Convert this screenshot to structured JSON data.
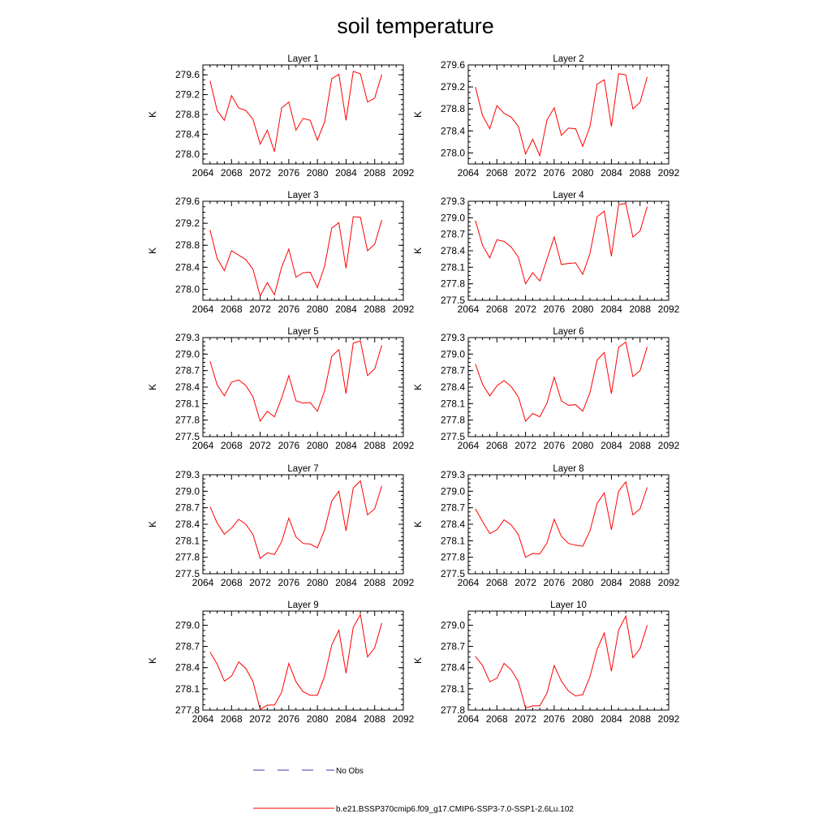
{
  "title": "soil temperature",
  "legend": {
    "items": [
      {
        "label": "No Obs",
        "color": "#3a3aa8",
        "dash": true
      },
      {
        "label": "b.e21.BSSP370cmip6.f09_g17.CMIP6-SSP3-7.0-SSP1-2.6Lu.102",
        "color": "#ff0000",
        "dash": false
      }
    ]
  },
  "colors": {
    "line": "#ff0000",
    "axis": "#000000",
    "obs": "#3a3aa8"
  },
  "chart_data": [
    {
      "type": "line",
      "title": "Layer 1",
      "ylabel": "K",
      "xlim": [
        2064,
        2092
      ],
      "xticks": [
        2064,
        2068,
        2072,
        2076,
        2080,
        2084,
        2088,
        2092
      ],
      "ylim": [
        277.8,
        279.8
      ],
      "yticks": [
        {
          "v": 278.0,
          "label": "278.0"
        },
        {
          "v": 278.4,
          "label": "278.4"
        },
        {
          "v": 278.8,
          "label": "278.8"
        },
        {
          "v": 279.2,
          "label": "279.2"
        },
        {
          "v": 279.6,
          "label": "279.6"
        }
      ],
      "series": [
        {
          "x": [
            2065,
            2066,
            2067,
            2068,
            2069,
            2070,
            2071,
            2072,
            2073,
            2074,
            2075,
            2076,
            2077,
            2078,
            2079,
            2080,
            2081,
            2082,
            2083,
            2084,
            2085,
            2086,
            2087,
            2088,
            2089
          ],
          "values": [
            279.48,
            278.88,
            278.68,
            279.18,
            278.93,
            278.88,
            278.7,
            278.2,
            278.48,
            278.05,
            278.93,
            279.05,
            278.48,
            278.72,
            278.68,
            278.28,
            278.65,
            279.52,
            279.61,
            278.68,
            279.67,
            279.62,
            279.05,
            279.13,
            279.61
          ]
        }
      ]
    },
    {
      "type": "line",
      "title": "Layer 2",
      "ylabel": "K",
      "xlim": [
        2064,
        2092
      ],
      "xticks": [
        2064,
        2068,
        2072,
        2076,
        2080,
        2084,
        2088,
        2092
      ],
      "ylim": [
        277.8,
        279.6
      ],
      "yticks": [
        {
          "v": 278.0,
          "label": "278.0"
        },
        {
          "v": 278.4,
          "label": "278.4"
        },
        {
          "v": 278.8,
          "label": "278.8"
        },
        {
          "v": 279.2,
          "label": "279.2"
        },
        {
          "v": 279.6,
          "label": "279.6"
        }
      ],
      "series": [
        {
          "x": [
            2065,
            2066,
            2067,
            2068,
            2069,
            2070,
            2071,
            2072,
            2073,
            2074,
            2075,
            2076,
            2077,
            2078,
            2079,
            2080,
            2081,
            2082,
            2083,
            2084,
            2085,
            2086,
            2087,
            2088,
            2089
          ],
          "values": [
            279.2,
            278.68,
            278.44,
            278.86,
            278.72,
            278.65,
            278.48,
            277.98,
            278.25,
            277.95,
            278.6,
            278.82,
            278.32,
            278.45,
            278.44,
            278.12,
            278.48,
            279.25,
            279.33,
            278.48,
            279.44,
            279.42,
            278.8,
            278.92,
            279.38
          ]
        }
      ]
    },
    {
      "type": "line",
      "title": "Layer 3",
      "ylabel": "K",
      "xlim": [
        2064,
        2092
      ],
      "xticks": [
        2064,
        2068,
        2072,
        2076,
        2080,
        2084,
        2088,
        2092
      ],
      "ylim": [
        277.8,
        279.6
      ],
      "yticks": [
        {
          "v": 278.0,
          "label": "278.0"
        },
        {
          "v": 278.4,
          "label": "278.4"
        },
        {
          "v": 278.8,
          "label": "278.8"
        },
        {
          "v": 279.2,
          "label": "279.2"
        },
        {
          "v": 279.6,
          "label": "279.6"
        }
      ],
      "series": [
        {
          "x": [
            2065,
            2066,
            2067,
            2068,
            2069,
            2070,
            2071,
            2072,
            2073,
            2074,
            2075,
            2076,
            2077,
            2078,
            2079,
            2080,
            2081,
            2082,
            2083,
            2084,
            2085,
            2086,
            2087,
            2088,
            2089
          ],
          "values": [
            279.08,
            278.56,
            278.34,
            278.7,
            278.62,
            278.54,
            278.36,
            277.88,
            278.12,
            277.9,
            278.4,
            278.73,
            278.22,
            278.3,
            278.31,
            278.03,
            278.42,
            279.11,
            279.21,
            278.38,
            279.32,
            279.31,
            278.7,
            278.82,
            279.26
          ]
        }
      ]
    },
    {
      "type": "line",
      "title": "Layer 4",
      "ylabel": "K",
      "xlim": [
        2064,
        2092
      ],
      "xticks": [
        2064,
        2068,
        2072,
        2076,
        2080,
        2084,
        2088,
        2092
      ],
      "ylim": [
        277.5,
        279.3
      ],
      "yticks": [
        {
          "v": 277.5,
          "label": "277.5"
        },
        {
          "v": 277.8,
          "label": "277.8"
        },
        {
          "v": 278.1,
          "label": "278.1"
        },
        {
          "v": 278.4,
          "label": "278.4"
        },
        {
          "v": 278.7,
          "label": "278.7"
        },
        {
          "v": 279.0,
          "label": "279.0"
        },
        {
          "v": 279.3,
          "label": "279.3"
        }
      ],
      "series": [
        {
          "x": [
            2065,
            2066,
            2067,
            2068,
            2069,
            2070,
            2071,
            2072,
            2073,
            2074,
            2075,
            2076,
            2077,
            2078,
            2079,
            2080,
            2081,
            2082,
            2083,
            2084,
            2085,
            2086,
            2087,
            2088,
            2089
          ],
          "values": [
            278.95,
            278.5,
            278.27,
            278.6,
            278.57,
            278.47,
            278.28,
            277.8,
            278.0,
            277.85,
            278.25,
            278.65,
            278.15,
            278.17,
            278.18,
            277.97,
            278.35,
            279.02,
            279.12,
            278.3,
            279.24,
            279.26,
            278.65,
            278.76,
            279.2
          ]
        }
      ]
    },
    {
      "type": "line",
      "title": "Layer 5",
      "ylabel": "K",
      "xlim": [
        2064,
        2092
      ],
      "xticks": [
        2064,
        2068,
        2072,
        2076,
        2080,
        2084,
        2088,
        2092
      ],
      "ylim": [
        277.5,
        279.3
      ],
      "yticks": [
        {
          "v": 277.5,
          "label": "277.5"
        },
        {
          "v": 277.8,
          "label": "277.8"
        },
        {
          "v": 278.1,
          "label": "278.1"
        },
        {
          "v": 278.4,
          "label": "278.4"
        },
        {
          "v": 278.7,
          "label": "278.7"
        },
        {
          "v": 279.0,
          "label": "279.0"
        },
        {
          "v": 279.3,
          "label": "279.3"
        }
      ],
      "series": [
        {
          "x": [
            2065,
            2066,
            2067,
            2068,
            2069,
            2070,
            2071,
            2072,
            2073,
            2074,
            2075,
            2076,
            2077,
            2078,
            2079,
            2080,
            2081,
            2082,
            2083,
            2084,
            2085,
            2086,
            2087,
            2088,
            2089
          ],
          "values": [
            278.87,
            278.44,
            278.24,
            278.49,
            278.53,
            278.43,
            278.22,
            277.78,
            277.96,
            277.86,
            278.2,
            278.61,
            278.15,
            278.11,
            278.12,
            277.96,
            278.33,
            278.96,
            279.08,
            278.28,
            279.2,
            279.24,
            278.61,
            278.73,
            279.16
          ]
        }
      ]
    },
    {
      "type": "line",
      "title": "Layer 6",
      "ylabel": "K",
      "xlim": [
        2064,
        2092
      ],
      "xticks": [
        2064,
        2068,
        2072,
        2076,
        2080,
        2084,
        2088,
        2092
      ],
      "ylim": [
        277.5,
        279.3
      ],
      "yticks": [
        {
          "v": 277.5,
          "label": "277.5"
        },
        {
          "v": 277.8,
          "label": "277.8"
        },
        {
          "v": 278.1,
          "label": "278.1"
        },
        {
          "v": 278.4,
          "label": "278.4"
        },
        {
          "v": 278.7,
          "label": "278.7"
        },
        {
          "v": 279.0,
          "label": "279.0"
        },
        {
          "v": 279.3,
          "label": "279.3"
        }
      ],
      "series": [
        {
          "x": [
            2065,
            2066,
            2067,
            2068,
            2069,
            2070,
            2071,
            2072,
            2073,
            2074,
            2075,
            2076,
            2077,
            2078,
            2079,
            2080,
            2081,
            2082,
            2083,
            2084,
            2085,
            2086,
            2087,
            2088,
            2089
          ],
          "values": [
            278.82,
            278.45,
            278.24,
            278.42,
            278.52,
            278.41,
            278.22,
            277.78,
            277.92,
            277.86,
            278.11,
            278.58,
            278.15,
            278.07,
            278.08,
            277.96,
            278.3,
            278.89,
            279.03,
            278.28,
            279.12,
            279.22,
            278.59,
            278.7,
            279.13
          ]
        }
      ]
    },
    {
      "type": "line",
      "title": "Layer 7",
      "ylabel": "K",
      "xlim": [
        2064,
        2092
      ],
      "xticks": [
        2064,
        2068,
        2072,
        2076,
        2080,
        2084,
        2088,
        2092
      ],
      "ylim": [
        277.5,
        279.3
      ],
      "yticks": [
        {
          "v": 277.5,
          "label": "277.5"
        },
        {
          "v": 277.8,
          "label": "277.8"
        },
        {
          "v": 278.1,
          "label": "278.1"
        },
        {
          "v": 278.4,
          "label": "278.4"
        },
        {
          "v": 278.7,
          "label": "278.7"
        },
        {
          "v": 279.0,
          "label": "279.0"
        },
        {
          "v": 279.3,
          "label": "279.3"
        }
      ],
      "series": [
        {
          "x": [
            2065,
            2066,
            2067,
            2068,
            2069,
            2070,
            2071,
            2072,
            2073,
            2074,
            2075,
            2076,
            2077,
            2078,
            2079,
            2080,
            2081,
            2082,
            2083,
            2084,
            2085,
            2086,
            2087,
            2088,
            2089
          ],
          "values": [
            278.72,
            278.42,
            278.22,
            278.33,
            278.49,
            278.4,
            278.21,
            277.78,
            277.88,
            277.85,
            278.08,
            278.51,
            278.17,
            278.05,
            278.04,
            277.97,
            278.3,
            278.82,
            279.0,
            278.28,
            279.06,
            279.19,
            278.57,
            278.68,
            279.1
          ]
        }
      ]
    },
    {
      "type": "line",
      "title": "Layer 8",
      "ylabel": "K",
      "xlim": [
        2064,
        2092
      ],
      "xticks": [
        2064,
        2068,
        2072,
        2076,
        2080,
        2084,
        2088,
        2092
      ],
      "ylim": [
        277.5,
        279.3
      ],
      "yticks": [
        {
          "v": 277.5,
          "label": "277.5"
        },
        {
          "v": 277.8,
          "label": "277.8"
        },
        {
          "v": 278.1,
          "label": "278.1"
        },
        {
          "v": 278.4,
          "label": "278.4"
        },
        {
          "v": 278.7,
          "label": "278.7"
        },
        {
          "v": 279.0,
          "label": "279.0"
        },
        {
          "v": 279.3,
          "label": "279.3"
        }
      ],
      "series": [
        {
          "x": [
            2065,
            2066,
            2067,
            2068,
            2069,
            2070,
            2071,
            2072,
            2073,
            2074,
            2075,
            2076,
            2077,
            2078,
            2079,
            2080,
            2081,
            2082,
            2083,
            2084,
            2085,
            2086,
            2087,
            2088,
            2089
          ],
          "values": [
            278.68,
            278.45,
            278.23,
            278.3,
            278.48,
            278.39,
            278.21,
            277.8,
            277.87,
            277.86,
            278.06,
            278.49,
            278.18,
            278.05,
            278.02,
            278.0,
            278.28,
            278.78,
            278.97,
            278.3,
            279.0,
            279.17,
            278.57,
            278.68,
            279.07
          ]
        }
      ]
    },
    {
      "type": "line",
      "title": "Layer 9",
      "ylabel": "K",
      "xlim": [
        2064,
        2092
      ],
      "xticks": [
        2064,
        2068,
        2072,
        2076,
        2080,
        2084,
        2088,
        2092
      ],
      "ylim": [
        277.8,
        279.2
      ],
      "yticks": [
        {
          "v": 277.8,
          "label": "277.8"
        },
        {
          "v": 278.1,
          "label": "278.1"
        },
        {
          "v": 278.4,
          "label": "278.4"
        },
        {
          "v": 278.7,
          "label": "278.7"
        },
        {
          "v": 279.0,
          "label": "279.0"
        }
      ],
      "series": [
        {
          "x": [
            2065,
            2066,
            2067,
            2068,
            2069,
            2070,
            2071,
            2072,
            2073,
            2074,
            2075,
            2076,
            2077,
            2078,
            2079,
            2080,
            2081,
            2082,
            2083,
            2084,
            2085,
            2086,
            2087,
            2088,
            2089
          ],
          "values": [
            278.62,
            278.45,
            278.21,
            278.28,
            278.48,
            278.39,
            278.2,
            277.81,
            277.87,
            277.87,
            278.05,
            278.46,
            278.2,
            278.06,
            278.01,
            278.01,
            278.28,
            278.72,
            278.93,
            278.32,
            278.97,
            279.15,
            278.55,
            278.68,
            279.03
          ]
        }
      ]
    },
    {
      "type": "line",
      "title": "Layer 10",
      "ylabel": "K",
      "xlim": [
        2064,
        2092
      ],
      "xticks": [
        2064,
        2068,
        2072,
        2076,
        2080,
        2084,
        2088,
        2092
      ],
      "ylim": [
        277.8,
        279.2
      ],
      "yticks": [
        {
          "v": 277.8,
          "label": "277.8"
        },
        {
          "v": 278.1,
          "label": "278.1"
        },
        {
          "v": 278.4,
          "label": "278.4"
        },
        {
          "v": 278.7,
          "label": "278.7"
        },
        {
          "v": 279.0,
          "label": "279.0"
        }
      ],
      "series": [
        {
          "x": [
            2065,
            2066,
            2067,
            2068,
            2069,
            2070,
            2071,
            2072,
            2073,
            2074,
            2075,
            2076,
            2077,
            2078,
            2079,
            2080,
            2081,
            2082,
            2083,
            2084,
            2085,
            2086,
            2087,
            2088,
            2089
          ],
          "values": [
            278.56,
            278.43,
            278.2,
            278.25,
            278.46,
            278.37,
            278.2,
            277.83,
            277.86,
            277.86,
            278.04,
            278.43,
            278.21,
            278.07,
            278.0,
            278.02,
            278.27,
            278.66,
            278.89,
            278.35,
            278.93,
            279.13,
            278.54,
            278.67,
            279.0
          ]
        }
      ]
    }
  ]
}
